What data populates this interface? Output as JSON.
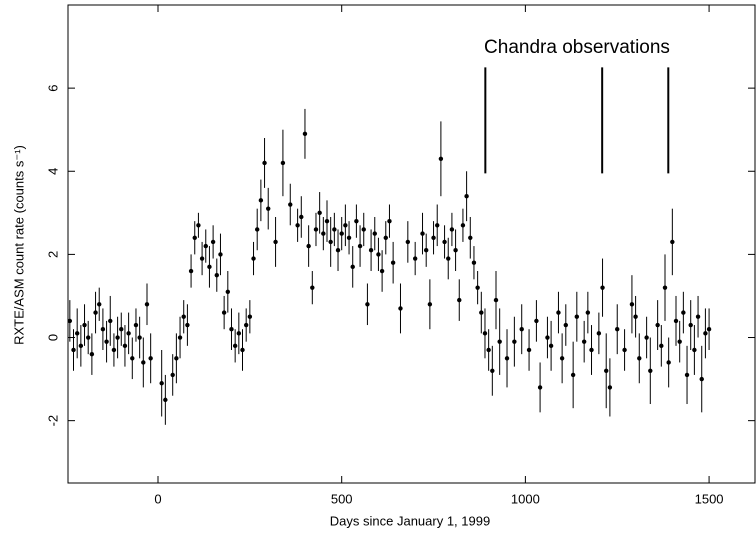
{
  "chart_data": {
    "type": "scatter",
    "x_label": "Days since January 1, 1999",
    "y_label": "RXTE/ASM count rate (counts s⁻¹)",
    "annotation": "Chandra observations",
    "observations": [
      891,
      1209,
      1389
    ],
    "observation_range": [
      3.95,
      6.5
    ],
    "xlim": [
      -245,
      1625
    ],
    "ylim": [
      -3.5,
      8
    ],
    "xticks": [
      0,
      500,
      1000,
      1500
    ],
    "yticks": [
      -2,
      0,
      2,
      4,
      6
    ],
    "color": "#000000",
    "x": [
      -240,
      -230,
      -220,
      -210,
      -200,
      -190,
      -180,
      -170,
      -160,
      -150,
      -140,
      -130,
      -120,
      -110,
      -100,
      -90,
      -80,
      -70,
      -60,
      -50,
      -40,
      -30,
      -20,
      10,
      20,
      40,
      50,
      60,
      70,
      80,
      90,
      100,
      110,
      120,
      130,
      140,
      150,
      160,
      170,
      180,
      190,
      200,
      210,
      220,
      230,
      240,
      250,
      260,
      270,
      280,
      290,
      300,
      320,
      340,
      360,
      380,
      390,
      400,
      410,
      420,
      430,
      440,
      450,
      460,
      470,
      480,
      490,
      500,
      510,
      520,
      530,
      540,
      550,
      560,
      570,
      580,
      590,
      600,
      610,
      620,
      630,
      640,
      660,
      680,
      700,
      720,
      730,
      740,
      750,
      760,
      770,
      780,
      790,
      800,
      810,
      820,
      830,
      840,
      850,
      860,
      870,
      880,
      890,
      900,
      910,
      920,
      930,
      950,
      970,
      990,
      1010,
      1030,
      1040,
      1060,
      1070,
      1090,
      1100,
      1110,
      1130,
      1140,
      1160,
      1170,
      1180,
      1200,
      1210,
      1220,
      1230,
      1250,
      1270,
      1290,
      1300,
      1310,
      1330,
      1340,
      1360,
      1370,
      1380,
      1390,
      1400,
      1410,
      1420,
      1430,
      1440,
      1450,
      1460,
      1470,
      1480,
      1490,
      1500
    ],
    "values": [
      0.4,
      -0.3,
      0.1,
      -0.2,
      0.3,
      0.0,
      -0.4,
      0.6,
      0.8,
      0.2,
      -0.1,
      0.4,
      -0.3,
      0.0,
      0.2,
      -0.2,
      0.1,
      -0.5,
      0.3,
      0.0,
      -0.6,
      0.8,
      -0.5,
      -1.1,
      -1.5,
      -0.9,
      -0.5,
      0.0,
      0.5,
      0.3,
      1.6,
      2.4,
      2.7,
      1.9,
      2.2,
      1.7,
      2.3,
      1.5,
      2.0,
      0.6,
      1.1,
      0.2,
      -0.2,
      0.1,
      -0.3,
      0.3,
      0.5,
      1.9,
      2.6,
      3.3,
      4.2,
      3.1,
      2.3,
      4.2,
      3.2,
      2.7,
      2.9,
      4.9,
      2.2,
      1.2,
      2.6,
      3.0,
      2.5,
      2.8,
      2.3,
      2.6,
      2.1,
      2.5,
      2.7,
      2.4,
      1.7,
      2.8,
      2.2,
      2.6,
      0.8,
      2.1,
      2.5,
      2.0,
      1.6,
      2.4,
      2.8,
      1.8,
      0.7,
      2.3,
      1.9,
      2.5,
      2.1,
      0.8,
      2.4,
      2.7,
      4.3,
      2.3,
      1.9,
      2.6,
      2.1,
      0.9,
      2.7,
      3.4,
      2.4,
      1.8,
      1.2,
      0.6,
      0.1,
      -0.3,
      -0.8,
      0.9,
      -0.1,
      -0.5,
      -0.1,
      0.2,
      -0.3,
      0.4,
      -1.2,
      0.0,
      -0.2,
      0.6,
      -0.5,
      0.3,
      -0.9,
      0.5,
      -0.1,
      0.6,
      -0.3,
      0.1,
      1.2,
      -0.8,
      -1.2,
      0.2,
      -0.3,
      0.8,
      0.5,
      -0.5,
      0.0,
      -0.8,
      0.3,
      -0.2,
      1.2,
      -0.6,
      2.3,
      0.4,
      -0.1,
      0.6,
      -0.9,
      0.3,
      -0.3,
      0.5,
      -1.0,
      0.1,
      0.2
    ],
    "errors": [
      0.5,
      0.5,
      0.6,
      0.5,
      0.5,
      0.4,
      0.5,
      0.5,
      0.4,
      0.5,
      0.5,
      0.6,
      0.4,
      0.5,
      0.4,
      0.5,
      0.5,
      0.5,
      0.4,
      0.5,
      0.6,
      0.5,
      0.6,
      0.8,
      0.6,
      0.5,
      0.6,
      0.5,
      0.4,
      0.5,
      0.4,
      0.4,
      0.3,
      0.4,
      0.4,
      0.5,
      0.4,
      0.4,
      0.5,
      0.4,
      0.5,
      0.5,
      0.4,
      0.5,
      0.5,
      0.4,
      0.4,
      0.4,
      0.5,
      0.5,
      0.6,
      0.5,
      0.6,
      0.8,
      0.5,
      0.4,
      0.5,
      0.6,
      0.5,
      0.4,
      0.4,
      0.5,
      0.4,
      0.5,
      0.6,
      0.4,
      0.5,
      0.4,
      0.5,
      0.4,
      0.5,
      0.4,
      0.5,
      0.4,
      0.5,
      0.5,
      0.4,
      0.4,
      0.5,
      0.4,
      0.4,
      0.5,
      0.6,
      0.5,
      0.4,
      0.5,
      0.4,
      0.6,
      0.4,
      0.5,
      0.9,
      0.4,
      0.5,
      0.4,
      0.5,
      0.5,
      0.4,
      0.6,
      0.5,
      0.4,
      0.4,
      0.5,
      0.6,
      0.5,
      0.6,
      0.7,
      0.8,
      0.7,
      0.6,
      0.6,
      0.5,
      0.5,
      0.6,
      0.5,
      0.6,
      0.5,
      0.6,
      0.5,
      0.8,
      0.6,
      0.5,
      0.5,
      0.6,
      0.5,
      0.7,
      0.9,
      0.7,
      0.6,
      0.5,
      0.7,
      0.5,
      0.6,
      0.5,
      0.8,
      0.6,
      0.5,
      0.8,
      0.6,
      0.8,
      0.6,
      0.5,
      0.5,
      0.7,
      0.6,
      0.6,
      0.5,
      0.8,
      0.6,
      0.5
    ]
  }
}
